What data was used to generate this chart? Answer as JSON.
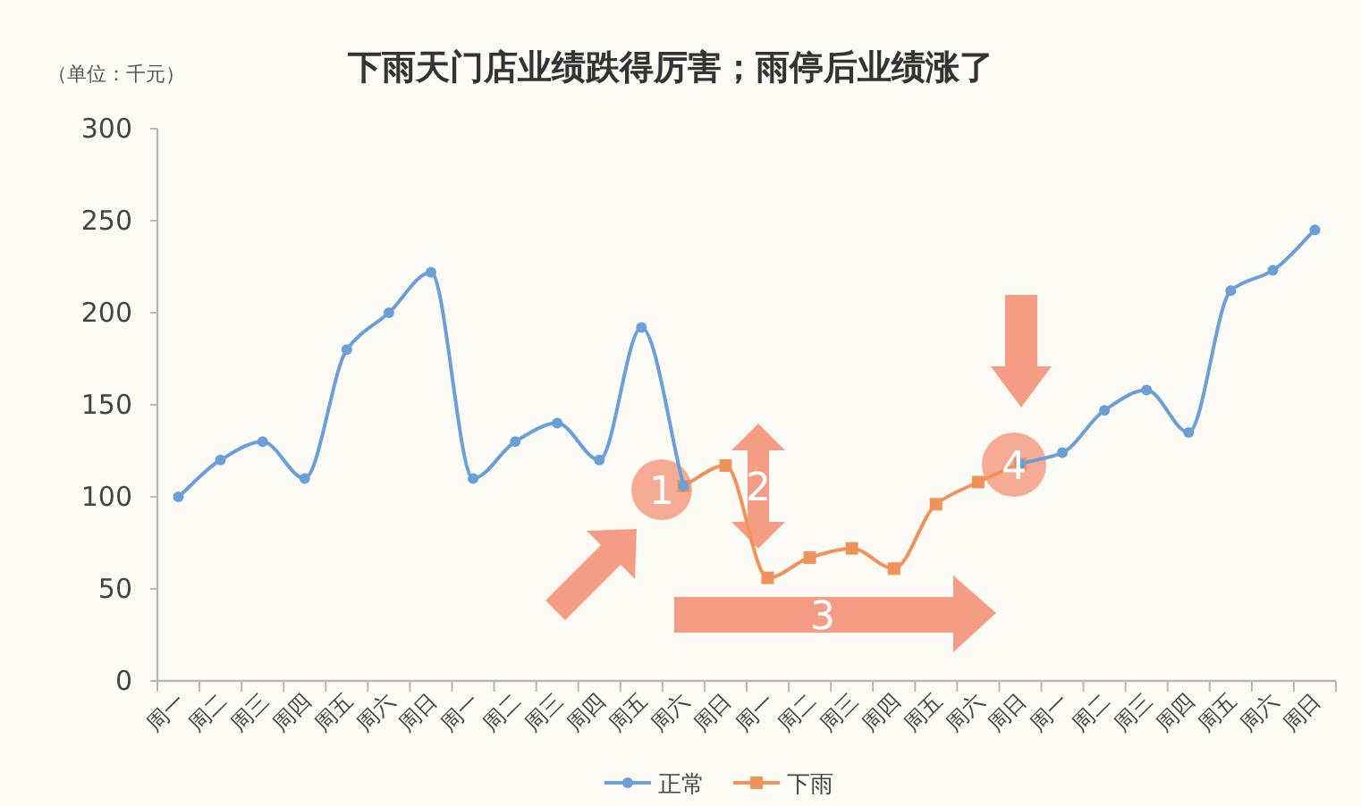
{
  "chart_data": {
    "type": "line",
    "title": "下雨天门店业绩跌得厉害；雨停后业绩涨了",
    "ylabel": "（单位：千元）",
    "categories": [
      "周一",
      "周二",
      "周三",
      "周四",
      "周五",
      "周六",
      "周日",
      "周一",
      "周二",
      "周三",
      "周四",
      "周五",
      "周六",
      "周日",
      "周一",
      "周二",
      "周三",
      "周四",
      "周五",
      "周六",
      "周日",
      "周一",
      "周二",
      "周三",
      "周四",
      "周五",
      "周六",
      "周日"
    ],
    "series": [
      {
        "name": "正常",
        "color": "#6a9fd8",
        "marker": "circle",
        "values": [
          100,
          120,
          130,
          110,
          180,
          200,
          222,
          110,
          130,
          140,
          120,
          192,
          106,
          null,
          null,
          null,
          null,
          null,
          null,
          null,
          118,
          124,
          147,
          158,
          135,
          212,
          223,
          245
        ]
      },
      {
        "name": "下雨",
        "color": "#f0935a",
        "marker": "square",
        "values": [
          null,
          null,
          null,
          null,
          null,
          null,
          null,
          null,
          null,
          null,
          null,
          null,
          106,
          117,
          56,
          67,
          72,
          61,
          96,
          108,
          118,
          null,
          null,
          null,
          null,
          null,
          null,
          null
        ]
      }
    ],
    "ylim": [
      0,
      300
    ],
    "yticks": [
      0,
      50,
      100,
      150,
      200,
      250,
      300
    ],
    "legend": "bottom",
    "grid": false,
    "annotations": [
      "1",
      "2",
      "3",
      "4"
    ]
  }
}
